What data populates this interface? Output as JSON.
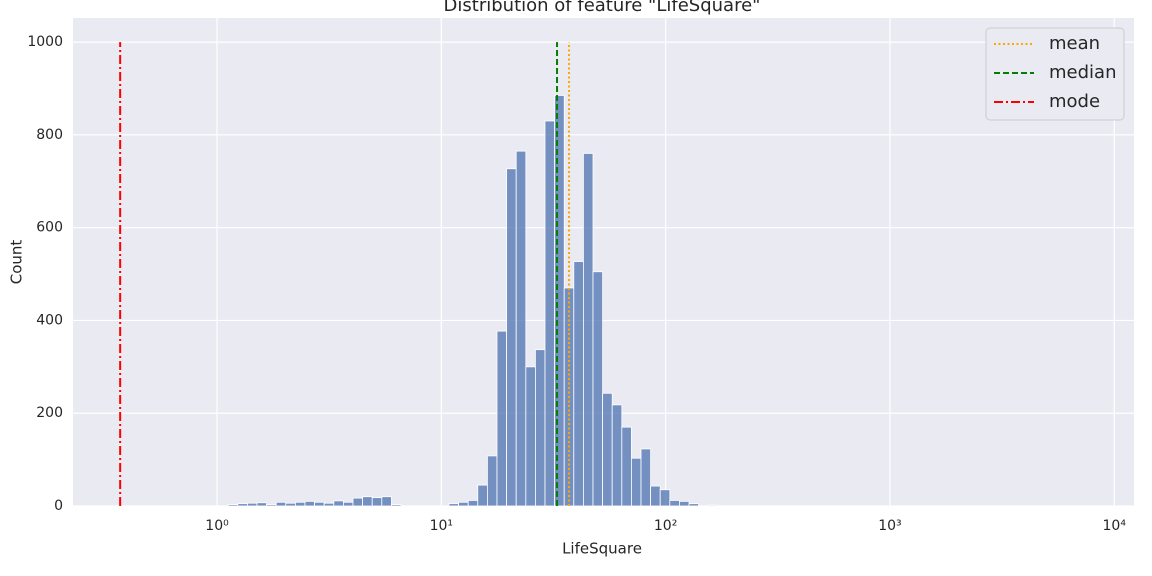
{
  "chart_data": {
    "type": "histogram",
    "title": "Distribution of feature \"LifeSquare\"",
    "x_label": "LifeSquare",
    "y_label": "Count",
    "x_scale": "log",
    "bins": [
      1.122,
      1.238,
      1.366,
      1.508,
      1.664,
      1.836,
      2.026,
      2.236,
      2.468,
      2.723,
      3.005,
      3.317,
      3.66,
      4.04,
      4.458,
      4.92,
      5.429,
      5.992,
      6.612,
      7.297,
      8.053,
      8.887,
      9.806,
      10.82,
      11.94,
      13.18,
      14.54,
      16.05,
      17.71,
      19.55,
      21.57,
      23.81,
      26.27,
      28.99,
      32.0,
      35.31,
      38.96,
      43.0,
      47.45,
      52.37,
      57.79,
      63.78,
      70.39,
      77.68,
      85.72,
      94.6,
      104.4,
      115.2,
      127.2,
      140.3,
      154.9,
      170.9
    ],
    "values": [
      3,
      5,
      6,
      7,
      3,
      8,
      6,
      8,
      10,
      8,
      6,
      11,
      8,
      17,
      20,
      18,
      20,
      3,
      0,
      0,
      0,
      0,
      0,
      5,
      8,
      12,
      45,
      108,
      377,
      727,
      765,
      300,
      337,
      830,
      885,
      470,
      527,
      760,
      505,
      243,
      218,
      170,
      103,
      123,
      43,
      35,
      12,
      10,
      5,
      0,
      2
    ],
    "color": "#4c72b0",
    "lines": [
      {
        "name": "mean",
        "value": 37.1,
        "color": "#ffa500",
        "style": "dotted"
      },
      {
        "name": "median",
        "value": 32.8,
        "color": "#008000",
        "style": "dashed"
      },
      {
        "name": "mode",
        "value": 0.37,
        "color": "#ff0000",
        "style": "dashdot"
      }
    ],
    "xlim": [
      0.228,
      12250
    ],
    "ylim": [
      0,
      1052
    ],
    "xticks": [
      {
        "value": 1,
        "label": "10⁰"
      },
      {
        "value": 10,
        "label": "10¹"
      },
      {
        "value": 100,
        "label": "10²"
      },
      {
        "value": 1000,
        "label": "10³"
      },
      {
        "value": 10000,
        "label": "10⁴"
      }
    ],
    "yticks": [
      0,
      200,
      400,
      600,
      800,
      1000
    ],
    "grid": true,
    "legend": "upper right"
  }
}
